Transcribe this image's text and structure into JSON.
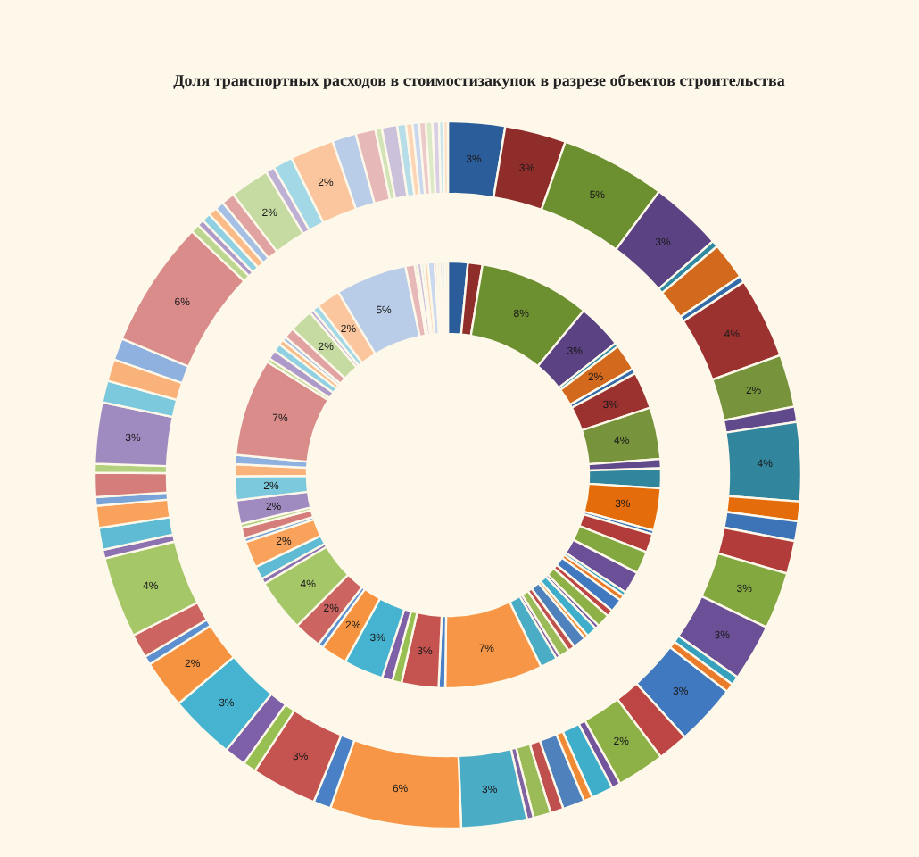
{
  "chart_data": {
    "type": "donut",
    "title": "Доля транспортных расходов в стоимостизакупок в разрезе объектов строительства",
    "categories": [
      null,
      null,
      null,
      null,
      null,
      null,
      null,
      null,
      null,
      null,
      null,
      null,
      null,
      null,
      null,
      null,
      null,
      null,
      null,
      null,
      null,
      null,
      null,
      null,
      null,
      null,
      null,
      null,
      null,
      null,
      null,
      null,
      null,
      null,
      null,
      null,
      null,
      null,
      null,
      null,
      null,
      null,
      null,
      null,
      null,
      null,
      null,
      null,
      null,
      null,
      null,
      null,
      null,
      null,
      null,
      null,
      null,
      null,
      null,
      null,
      null,
      null,
      null,
      null,
      null,
      null,
      null,
      null,
      null,
      null,
      null,
      null
    ],
    "colors": [
      "#2c5d9b",
      "#8f2d2b",
      "#6c8f30",
      "#5b4283",
      "#2f8aa1",
      "#d2691c",
      "#336aa9",
      "#9c3230",
      "#77933c",
      "#604a8c",
      "#31859c",
      "#e46c0a",
      "#3d74b7",
      "#b23c3a",
      "#84a840",
      "#6b5097",
      "#37a0bd",
      "#ea7b2a",
      "#4079c0",
      "#bd4543",
      "#8db146",
      "#72559c",
      "#3eaecb",
      "#f08a35",
      "#4f81bd",
      "#c0504d",
      "#9bbb59",
      "#8064a2",
      "#4bacc6",
      "#f79646",
      "#4a80c5",
      "#c5534f",
      "#98bf52",
      "#7d60a7",
      "#46b4d0",
      "#f59340",
      "#5b8fcf",
      "#cc6462",
      "#a5c768",
      "#8c72b0",
      "#5fbbd4",
      "#f8a25c",
      "#7aa3d8",
      "#d57d7b",
      "#b3d07f",
      "#a08bc0",
      "#7cc8dc",
      "#f9b27a",
      "#8fb1df",
      "#d98c8a",
      "#bcd58f",
      "#ad9ac8",
      "#8fd0e2",
      "#fabb88",
      "#a5c0e4",
      "#e0a3a1",
      "#c6dba1",
      "#bdb0d4",
      "#a3d9e7",
      "#fbc69d",
      "#b9cde8",
      "#e6b9b8",
      "#d2e3b6",
      "#ccc1da",
      "#b7dee8",
      "#fcd5b5",
      "#c9d8ee",
      "#eccac9",
      "#dce9c6",
      "#d8cfe4",
      "#c8e6ee",
      "#fde0c8"
    ],
    "series": [
      {
        "values": [
          1.5,
          1.1,
          8.4,
          3.4,
          0.3,
          2.0,
          0.4,
          2.8,
          3.9,
          0.7,
          1.5,
          3.2,
          0.3,
          1.4,
          1.7,
          1.7,
          0.3,
          0.4,
          1.0,
          0.5,
          1.0,
          0.3,
          0.8,
          0.3,
          1.0,
          0.5,
          0.8,
          0.3,
          1.3,
          7.4,
          0.5,
          2.8,
          0.7,
          0.8,
          3.0,
          2.0,
          0.4,
          2.1,
          4.0,
          0.4,
          1.0,
          2.0,
          0.3,
          0.8,
          0.3,
          1.8,
          1.8,
          0.9,
          0.7,
          7.4,
          0.3,
          0.7,
          0.6,
          0.4,
          0.3,
          0.8,
          1.8,
          0.3,
          0.5,
          1.8,
          5.4,
          0.7,
          0.2,
          0.3,
          0.2,
          0.3,
          0.5,
          0.2,
          0.2,
          0.2,
          0.2,
          0.2
        ],
        "value_labels": [
          null,
          null,
          "8%",
          "3%",
          null,
          "2%",
          null,
          "3%",
          "4%",
          null,
          null,
          "3%",
          null,
          null,
          null,
          null,
          null,
          null,
          null,
          null,
          null,
          null,
          null,
          null,
          null,
          null,
          null,
          null,
          null,
          "7%",
          null,
          "3%",
          null,
          null,
          "3%",
          "2%",
          null,
          "2%",
          "4%",
          null,
          null,
          "2%",
          null,
          null,
          null,
          "2%",
          "2%",
          null,
          null,
          "7%",
          null,
          null,
          null,
          null,
          null,
          null,
          "2%",
          null,
          null,
          "2%",
          "5%",
          null,
          null,
          null,
          null,
          null,
          null,
          null,
          null,
          null,
          null,
          null
        ]
      },
      {
        "values": [
          2.6,
          2.8,
          4.8,
          3.3,
          0.3,
          1.7,
          0.3,
          3.7,
          2.4,
          0.7,
          3.6,
          0.9,
          0.9,
          1.5,
          2.6,
          2.6,
          0.4,
          0.4,
          2.8,
          1.4,
          2.2,
          0.4,
          1.0,
          0.4,
          1.0,
          0.6,
          0.8,
          0.3,
          3.0,
          6.0,
          0.8,
          3.0,
          0.6,
          1.0,
          3.0,
          2.2,
          0.4,
          1.1,
          3.7,
          0.4,
          1.0,
          1.0,
          0.4,
          1.1,
          0.4,
          2.8,
          1.0,
          1.0,
          1.0,
          5.8,
          0.4,
          0.3,
          0.4,
          0.4,
          0.4,
          0.6,
          1.8,
          0.4,
          0.9,
          2.0,
          1.1,
          0.9,
          0.3,
          0.7,
          0.4,
          0.3,
          0.3,
          0.3,
          0.3,
          0.3,
          0.2,
          0.2
        ],
        "value_labels": [
          "3%",
          "3%",
          "5%",
          "3%",
          null,
          null,
          null,
          "4%",
          "2%",
          null,
          "4%",
          null,
          null,
          null,
          "3%",
          "3%",
          null,
          null,
          "3%",
          null,
          "2%",
          null,
          null,
          null,
          null,
          null,
          null,
          null,
          "3%",
          "6%",
          null,
          "3%",
          null,
          null,
          "3%",
          "2%",
          null,
          null,
          "4%",
          null,
          null,
          null,
          null,
          null,
          null,
          "3%",
          null,
          null,
          null,
          "6%",
          null,
          null,
          null,
          null,
          null,
          null,
          "2%",
          null,
          null,
          "2%",
          null,
          null,
          null,
          null,
          null,
          null,
          null,
          null,
          null,
          null,
          null,
          null
        ]
      }
    ]
  }
}
